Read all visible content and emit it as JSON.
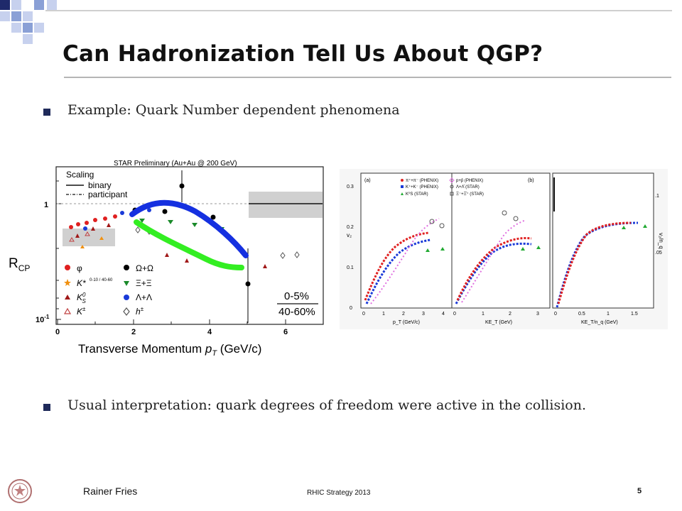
{
  "slide": {
    "title": "Can Hadronization Tell Us About QGP?",
    "bullets": [
      "Example: Quark Number dependent phenomena",
      "Usual interpretation: quark degrees of freedom were active in the collision."
    ]
  },
  "footer": {
    "author": "Rainer Fries",
    "center": "RHIC Strategy 2013",
    "page": "5"
  },
  "colors": {
    "decor_navy": "#1f2a6b",
    "decor_blue": "#8aa0d6",
    "decor_light": "#c7d1ee",
    "curve_blue": "#1530e0",
    "curve_green": "#33ee22"
  },
  "left_figure": {
    "header": "STAR Preliminary (Au+Au @ 200 GeV)",
    "scaling_title": "Scaling",
    "legend_binary": "binary",
    "legend_participant": "participant",
    "ylabel": "R",
    "ylabel_sub": "CP",
    "xlabel_main": "Transverse Momentum ",
    "xlabel_var": "p",
    "xlabel_sub": "T",
    "xlabel_unit": " (GeV/c)",
    "yticks": [
      "1",
      "10"
    ],
    "ytick_exp": "-1",
    "xticks": [
      "0",
      "2",
      "4",
      "6"
    ],
    "centrality_top": "0-5%",
    "centrality_bottom": "40-60%",
    "species": [
      {
        "label": "φ",
        "color": "#e02020"
      },
      {
        "label": "K*",
        "color": "#f09010"
      },
      {
        "label": "K",
        "color": "#a01818"
      },
      {
        "label": "K",
        "color": "#c04040"
      },
      {
        "label": "Ω+Ω",
        "color": "#000000"
      },
      {
        "label": "Ξ+Ξ",
        "color": "#1a8a2a"
      },
      {
        "label": "Λ+Λ",
        "color": "#1a3ad8"
      },
      {
        "label": "h",
        "color": "#555555"
      }
    ],
    "kstar_fraction": "0-10 / 40-60",
    "k0_sup": "0",
    "k0_sub": "S",
    "kpm_sup": "±",
    "hpm_sup": "±"
  },
  "right_figure": {
    "panel_a": "(a)",
    "panel_b": "(b)",
    "legend": [
      {
        "label": "π⁺+π⁻ (PHENIX)",
        "color": "#e02020"
      },
      {
        "label": "p+p̄ (PHENIX)",
        "color": "#e070e0"
      },
      {
        "label": "K⁺+K⁻ (PHENIX)",
        "color": "#1a3ad8"
      },
      {
        "label": "Λ+Λ̄ (STAR)",
        "color": "#555555"
      },
      {
        "label": "K⁰S (STAR)",
        "color": "#22aa33"
      },
      {
        "label": "Ξ⁻+Ξ̄⁺ (STAR)",
        "color": "#555555"
      }
    ],
    "y_label_left": "v₂",
    "y_label_right": "v₂/n_q",
    "yticks_left": [
      "0",
      "0.1",
      "0.2",
      "0.3"
    ],
    "yticks_right": [
      ".05",
      ".1"
    ],
    "xlabel_1": "p_T (GeV/c)",
    "xlabel_2": "KE_T (GeV)",
    "xlabel_3": "KE_T/n_q (GeV)",
    "xticks_1": [
      "0",
      "1",
      "2",
      "3",
      "4"
    ],
    "xticks_2": [
      "0",
      "1",
      "2",
      "3"
    ],
    "xticks_3": [
      "0",
      "0.5",
      "1",
      "1.5"
    ]
  }
}
